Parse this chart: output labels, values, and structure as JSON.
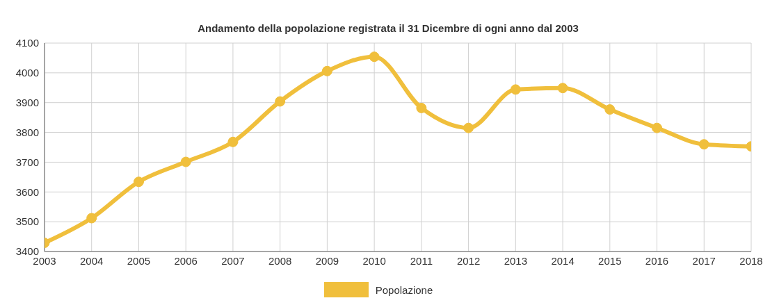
{
  "chart_data": {
    "type": "line",
    "title": "Andamento della popolazione registrata il 31 Dicembre di ogni anno dal 2003",
    "x": [
      2003,
      2004,
      2005,
      2006,
      2007,
      2008,
      2009,
      2010,
      2011,
      2012,
      2013,
      2014,
      2015,
      2016,
      2017,
      2018
    ],
    "series": [
      {
        "name": "Popolazione",
        "color": "#f0bf3c",
        "values": [
          3429,
          3512,
          3634,
          3701,
          3768,
          3904,
          4006,
          4054,
          3882,
          3815,
          3944,
          3949,
          3877,
          3815,
          3760,
          3753
        ]
      }
    ],
    "xlim": [
      2003,
      2018
    ],
    "xticks": [
      2003,
      2004,
      2005,
      2006,
      2007,
      2008,
      2009,
      2010,
      2011,
      2012,
      2013,
      2014,
      2015,
      2016,
      2017,
      2018
    ],
    "ylim": [
      3400,
      4100
    ],
    "yticks": [
      3400,
      3500,
      3600,
      3700,
      3800,
      3900,
      4000,
      4100
    ],
    "grid": true,
    "legend": "bottom",
    "marker": "circle",
    "line_style": "solid"
  }
}
